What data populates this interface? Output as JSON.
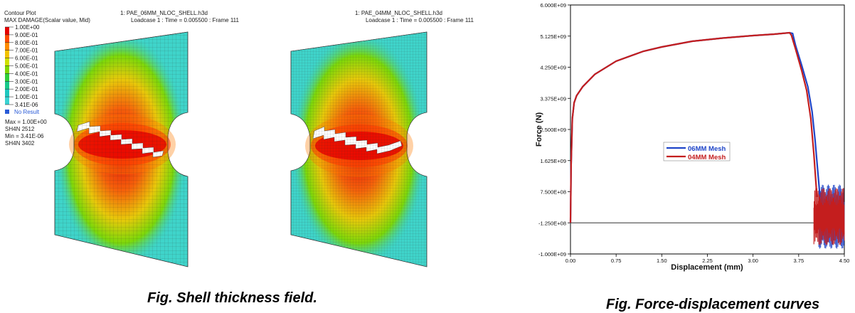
{
  "contour": {
    "title": "Contour Plot",
    "subtitle": "MAX DAMAGE(Scalar value, Mid)",
    "scale_labels": [
      "1.00E+00",
      "9.00E-01",
      "8.00E-01",
      "7.00E-01",
      "6.00E-01",
      "5.00E-01",
      "4.00E-01",
      "3.00E-01",
      "2.00E-01",
      "1.00E-01",
      "3.41E-06"
    ],
    "scale_colors": [
      "#e60000",
      "#ff4a00",
      "#ff8c00",
      "#f2c200",
      "#cfe000",
      "#7fd800",
      "#2fcf3a",
      "#18c98a",
      "#1ec8bf",
      "#3ad3d3"
    ],
    "no_result": "No Result",
    "no_result_color": "#2a5bd7",
    "stats": [
      "Max = 1.00E+00",
      "SH4N 2512",
      "Min = 3.41E-06",
      "SH4N 3402"
    ]
  },
  "models": [
    {
      "file": "1: PAE_06MM_NLOC_SHELL.h3d",
      "loadcase": "Loadcase 1 : Time = 0.005500 : Frame 111"
    },
    {
      "file": "1: PAE_04MM_NLOC_SHELL.h3d",
      "loadcase": "Loadcase 1 : Time = 0.005500 : Frame 111"
    }
  ],
  "chart_data": {
    "type": "line",
    "xlabel": "Displacement (mm)",
    "ylabel": "Force (N)",
    "xlim": [
      0,
      4.5
    ],
    "ylim": [
      -1000000000.0,
      6000000000.0
    ],
    "xticks": [
      "0.00",
      "0.75",
      "1.50",
      "2.25",
      "3.00",
      "3.75",
      "4.50"
    ],
    "yticks": [
      "6.000E+09",
      "5.125E+09",
      "4.250E+09",
      "3.375E+09",
      "2.500E+09",
      "1.625E+09",
      "7.500E+08",
      "-1.250E+08",
      "-1.000E+09"
    ],
    "legend_position": "center",
    "series": [
      {
        "name": "06MM Mesh",
        "color": "#1f45c8",
        "points": [
          [
            0,
            -125000000.0
          ],
          [
            0.01,
            1500000000.0
          ],
          [
            0.03,
            2800000000.0
          ],
          [
            0.06,
            3250000000.0
          ],
          [
            0.1,
            3450000000.0
          ],
          [
            0.2,
            3700000000.0
          ],
          [
            0.4,
            4050000000.0
          ],
          [
            0.75,
            4420000000.0
          ],
          [
            1.2,
            4700000000.0
          ],
          [
            1.5,
            4820000000.0
          ],
          [
            2.0,
            4980000000.0
          ],
          [
            2.5,
            5070000000.0
          ],
          [
            3.0,
            5140000000.0
          ],
          [
            3.35,
            5180000000.0
          ],
          [
            3.6,
            5220000000.0
          ],
          [
            3.65,
            5200000000.0
          ],
          [
            3.7,
            4850000000.0
          ],
          [
            3.8,
            4300000000.0
          ],
          [
            3.9,
            3700000000.0
          ],
          [
            3.97,
            3000000000.0
          ],
          [
            4.02,
            2200000000.0
          ],
          [
            4.07,
            1200000000.0
          ],
          [
            4.1,
            600000000.0
          ],
          [
            4.5,
            600000000.0
          ]
        ]
      },
      {
        "name": "04MM Mesh",
        "color": "#c41e1e",
        "points": [
          [
            0,
            -125000000.0
          ],
          [
            0.01,
            1500000000.0
          ],
          [
            0.03,
            2800000000.0
          ],
          [
            0.06,
            3250000000.0
          ],
          [
            0.1,
            3450000000.0
          ],
          [
            0.2,
            3700000000.0
          ],
          [
            0.4,
            4050000000.0
          ],
          [
            0.75,
            4420000000.0
          ],
          [
            1.2,
            4700000000.0
          ],
          [
            1.5,
            4820000000.0
          ],
          [
            2.0,
            4980000000.0
          ],
          [
            2.5,
            5070000000.0
          ],
          [
            3.0,
            5140000000.0
          ],
          [
            3.35,
            5180000000.0
          ],
          [
            3.6,
            5220000000.0
          ],
          [
            3.63,
            5150000000.0
          ],
          [
            3.7,
            4750000000.0
          ],
          [
            3.8,
            4150000000.0
          ],
          [
            3.88,
            3600000000.0
          ],
          [
            3.95,
            2800000000.0
          ],
          [
            4.0,
            1800000000.0
          ],
          [
            4.05,
            600000000.0
          ],
          [
            4.5,
            550000000.0
          ]
        ]
      }
    ]
  },
  "captions": {
    "left": "Fig. Shell thickness field.",
    "right": "Fig. Force-displacement curves"
  }
}
